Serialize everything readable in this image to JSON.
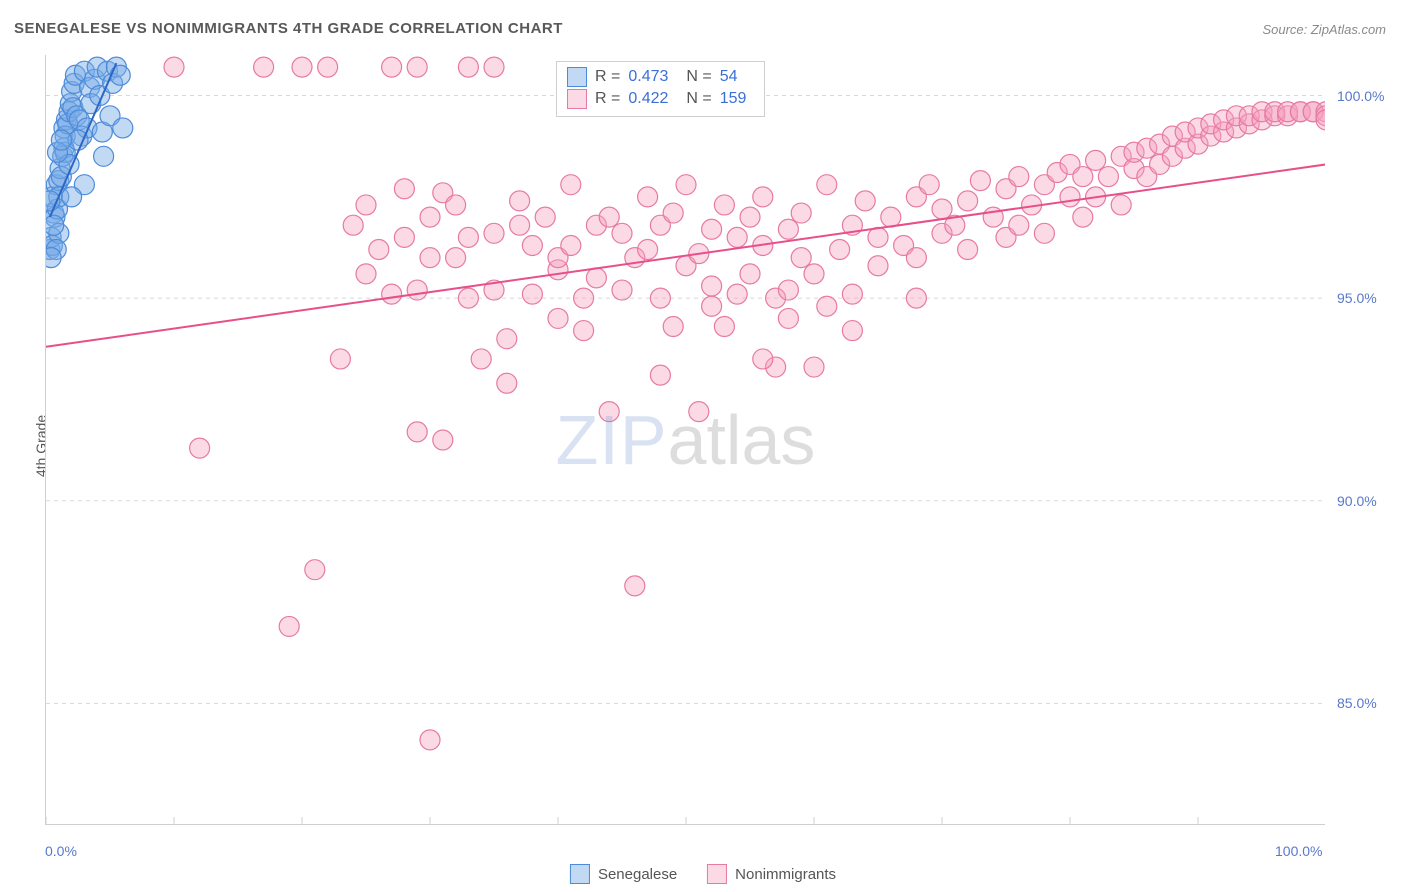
{
  "title": "SENEGALESE VS NONIMMIGRANTS 4TH GRADE CORRELATION CHART",
  "source": "Source: ZipAtlas.com",
  "watermark": {
    "part1": "ZIP",
    "part2": "atlas"
  },
  "ylabel": "4th Grade",
  "chart": {
    "type": "scatter",
    "background_color": "#ffffff",
    "grid_color": "#d8d8d8",
    "axis_color": "#cfcfcf",
    "xlim": [
      0,
      100
    ],
    "ylim": [
      82,
      101
    ],
    "marker_radius": 10,
    "marker_stroke_width": 1.2,
    "trend_line_width": 2,
    "xticks": [
      0,
      10,
      20,
      30,
      40,
      50,
      60,
      70,
      80,
      90,
      100
    ],
    "xtick_labels": {
      "0": "0.0%",
      "100": "100.0%"
    },
    "yticks": [
      85,
      90,
      95,
      100
    ],
    "ytick_labels": {
      "85": "85.0%",
      "90": "90.0%",
      "95": "95.0%",
      "100": "100.0%"
    },
    "series": [
      {
        "name": "Senegalese",
        "fill": "rgba(120,170,230,0.45)",
        "stroke": "#4c8bd9",
        "trend_color": "#2e67c3",
        "R": "0.473",
        "N": "54",
        "trend": {
          "x1": 0.3,
          "y1": 97.0,
          "x2": 5.5,
          "y2": 100.8
        },
        "points": [
          [
            0.3,
            96.2
          ],
          [
            0.4,
            96.5
          ],
          [
            0.5,
            96.3
          ],
          [
            0.6,
            97.1
          ],
          [
            0.5,
            97.5
          ],
          [
            0.7,
            97.0
          ],
          [
            0.8,
            97.8
          ],
          [
            0.9,
            97.2
          ],
          [
            1.0,
            97.9
          ],
          [
            1.0,
            97.5
          ],
          [
            1.1,
            98.2
          ],
          [
            1.2,
            98.0
          ],
          [
            1.3,
            98.5
          ],
          [
            1.4,
            98.7
          ],
          [
            1.4,
            99.2
          ],
          [
            1.5,
            98.6
          ],
          [
            1.6,
            99.4
          ],
          [
            1.5,
            99.0
          ],
          [
            1.7,
            99.3
          ],
          [
            1.8,
            99.6
          ],
          [
            1.9,
            99.8
          ],
          [
            2.0,
            100.1
          ],
          [
            2.1,
            99.7
          ],
          [
            2.2,
            100.3
          ],
          [
            2.4,
            99.5
          ],
          [
            2.3,
            100.5
          ],
          [
            2.6,
            99.4
          ],
          [
            2.8,
            99.0
          ],
          [
            3.0,
            100.6
          ],
          [
            3.2,
            99.2
          ],
          [
            3.4,
            100.2
          ],
          [
            3.5,
            99.8
          ],
          [
            3.8,
            100.4
          ],
          [
            4.0,
            100.7
          ],
          [
            4.2,
            100.0
          ],
          [
            4.4,
            99.1
          ],
          [
            4.5,
            98.5
          ],
          [
            4.8,
            100.6
          ],
          [
            5.0,
            99.5
          ],
          [
            5.2,
            100.3
          ],
          [
            5.5,
            100.7
          ],
          [
            5.8,
            100.5
          ],
          [
            6.0,
            99.2
          ],
          [
            1.0,
            96.6
          ],
          [
            0.8,
            96.2
          ],
          [
            0.6,
            96.8
          ],
          [
            0.4,
            96.0
          ],
          [
            0.3,
            97.4
          ],
          [
            1.8,
            98.3
          ],
          [
            2.5,
            98.9
          ],
          [
            3.0,
            97.8
          ],
          [
            0.9,
            98.6
          ],
          [
            1.2,
            98.9
          ],
          [
            2.0,
            97.5
          ]
        ]
      },
      {
        "name": "Nonimmigrants",
        "fill": "rgba(245,160,190,0.40)",
        "stroke": "#e77aa3",
        "trend_color": "#e84f88",
        "R": "0.422",
        "N": "159",
        "trend": {
          "x1": 0,
          "y1": 93.8,
          "x2": 100,
          "y2": 98.3
        },
        "points": [
          [
            10,
            100.7
          ],
          [
            17,
            100.7
          ],
          [
            20,
            100.7
          ],
          [
            22,
            100.7
          ],
          [
            27,
            100.7
          ],
          [
            29,
            100.7
          ],
          [
            33,
            100.7
          ],
          [
            35,
            100.7
          ],
          [
            12,
            91.3
          ],
          [
            19,
            86.9
          ],
          [
            21,
            88.3
          ],
          [
            23,
            93.5
          ],
          [
            24,
            96.8
          ],
          [
            25,
            97.3
          ],
          [
            25,
            95.6
          ],
          [
            26,
            96.2
          ],
          [
            27,
            95.1
          ],
          [
            28,
            96.5
          ],
          [
            28,
            97.7
          ],
          [
            29,
            95.2
          ],
          [
            29,
            91.7
          ],
          [
            30,
            97.0
          ],
          [
            30,
            96.0
          ],
          [
            30,
            84.1
          ],
          [
            31,
            97.6
          ],
          [
            31,
            91.5
          ],
          [
            32,
            96.0
          ],
          [
            32,
            97.3
          ],
          [
            33,
            95.0
          ],
          [
            33,
            96.5
          ],
          [
            34,
            93.5
          ],
          [
            35,
            96.6
          ],
          [
            35,
            95.2
          ],
          [
            36,
            94.0
          ],
          [
            37,
            96.8
          ],
          [
            37,
            97.4
          ],
          [
            38,
            95.1
          ],
          [
            38,
            96.3
          ],
          [
            39,
            97.0
          ],
          [
            40,
            95.7
          ],
          [
            40,
            96.0
          ],
          [
            41,
            96.3
          ],
          [
            41,
            97.8
          ],
          [
            42,
            95.0
          ],
          [
            42,
            94.2
          ],
          [
            43,
            96.8
          ],
          [
            43,
            95.5
          ],
          [
            44,
            97.0
          ],
          [
            44,
            92.2
          ],
          [
            45,
            95.2
          ],
          [
            45,
            96.6
          ],
          [
            46,
            87.9
          ],
          [
            46,
            96.0
          ],
          [
            47,
            97.5
          ],
          [
            47,
            96.2
          ],
          [
            48,
            95.0
          ],
          [
            48,
            96.8
          ],
          [
            49,
            94.3
          ],
          [
            49,
            97.1
          ],
          [
            50,
            95.8
          ],
          [
            50,
            97.8
          ],
          [
            51,
            96.1
          ],
          [
            51,
            92.2
          ],
          [
            52,
            95.3
          ],
          [
            52,
            96.7
          ],
          [
            53,
            97.3
          ],
          [
            53,
            94.3
          ],
          [
            54,
            95.1
          ],
          [
            54,
            96.5
          ],
          [
            55,
            97.0
          ],
          [
            55,
            95.6
          ],
          [
            56,
            96.3
          ],
          [
            56,
            97.5
          ],
          [
            57,
            95.0
          ],
          [
            57,
            93.3
          ],
          [
            58,
            96.7
          ],
          [
            58,
            95.2
          ],
          [
            59,
            97.1
          ],
          [
            59,
            96.0
          ],
          [
            60,
            93.3
          ],
          [
            60,
            95.6
          ],
          [
            61,
            97.8
          ],
          [
            62,
            96.2
          ],
          [
            63,
            96.8
          ],
          [
            63,
            95.1
          ],
          [
            64,
            97.4
          ],
          [
            65,
            96.5
          ],
          [
            65,
            95.8
          ],
          [
            66,
            97.0
          ],
          [
            67,
            96.3
          ],
          [
            68,
            97.5
          ],
          [
            68,
            96.0
          ],
          [
            69,
            97.8
          ],
          [
            70,
            96.6
          ],
          [
            70,
            97.2
          ],
          [
            71,
            96.8
          ],
          [
            72,
            97.4
          ],
          [
            72,
            96.2
          ],
          [
            73,
            97.9
          ],
          [
            74,
            97.0
          ],
          [
            75,
            97.7
          ],
          [
            75,
            96.5
          ],
          [
            76,
            98.0
          ],
          [
            76,
            96.8
          ],
          [
            77,
            97.3
          ],
          [
            78,
            97.8
          ],
          [
            78,
            96.6
          ],
          [
            79,
            98.1
          ],
          [
            80,
            97.5
          ],
          [
            80,
            98.3
          ],
          [
            81,
            97.0
          ],
          [
            81,
            98.0
          ],
          [
            82,
            97.5
          ],
          [
            82,
            98.4
          ],
          [
            83,
            98.0
          ],
          [
            84,
            98.5
          ],
          [
            84,
            97.3
          ],
          [
            85,
            98.2
          ],
          [
            85,
            98.6
          ],
          [
            86,
            98.0
          ],
          [
            86,
            98.7
          ],
          [
            87,
            98.3
          ],
          [
            87,
            98.8
          ],
          [
            88,
            98.5
          ],
          [
            88,
            99.0
          ],
          [
            89,
            98.7
          ],
          [
            89,
            99.1
          ],
          [
            90,
            98.8
          ],
          [
            90,
            99.2
          ],
          [
            91,
            99.0
          ],
          [
            91,
            99.3
          ],
          [
            92,
            99.1
          ],
          [
            92,
            99.4
          ],
          [
            93,
            99.2
          ],
          [
            93,
            99.5
          ],
          [
            94,
            99.3
          ],
          [
            94,
            99.5
          ],
          [
            95,
            99.4
          ],
          [
            95,
            99.6
          ],
          [
            96,
            99.5
          ],
          [
            96,
            99.6
          ],
          [
            97,
            99.5
          ],
          [
            97,
            99.6
          ],
          [
            98,
            99.6
          ],
          [
            98,
            99.6
          ],
          [
            99,
            99.6
          ],
          [
            99,
            99.6
          ],
          [
            100,
            99.6
          ],
          [
            100,
            99.5
          ],
          [
            100,
            99.4
          ],
          [
            63,
            94.2
          ],
          [
            56,
            93.5
          ],
          [
            48,
            93.1
          ],
          [
            36,
            92.9
          ],
          [
            40,
            94.5
          ],
          [
            52,
            94.8
          ],
          [
            58,
            94.5
          ],
          [
            61,
            94.8
          ],
          [
            68,
            95.0
          ]
        ]
      }
    ]
  },
  "legend_bottom": [
    {
      "label": "Senegalese",
      "fill": "rgba(120,170,230,0.45)",
      "stroke": "#4c8bd9"
    },
    {
      "label": "Nonimmigrants",
      "fill": "rgba(245,160,190,0.40)",
      "stroke": "#e77aa3"
    }
  ]
}
